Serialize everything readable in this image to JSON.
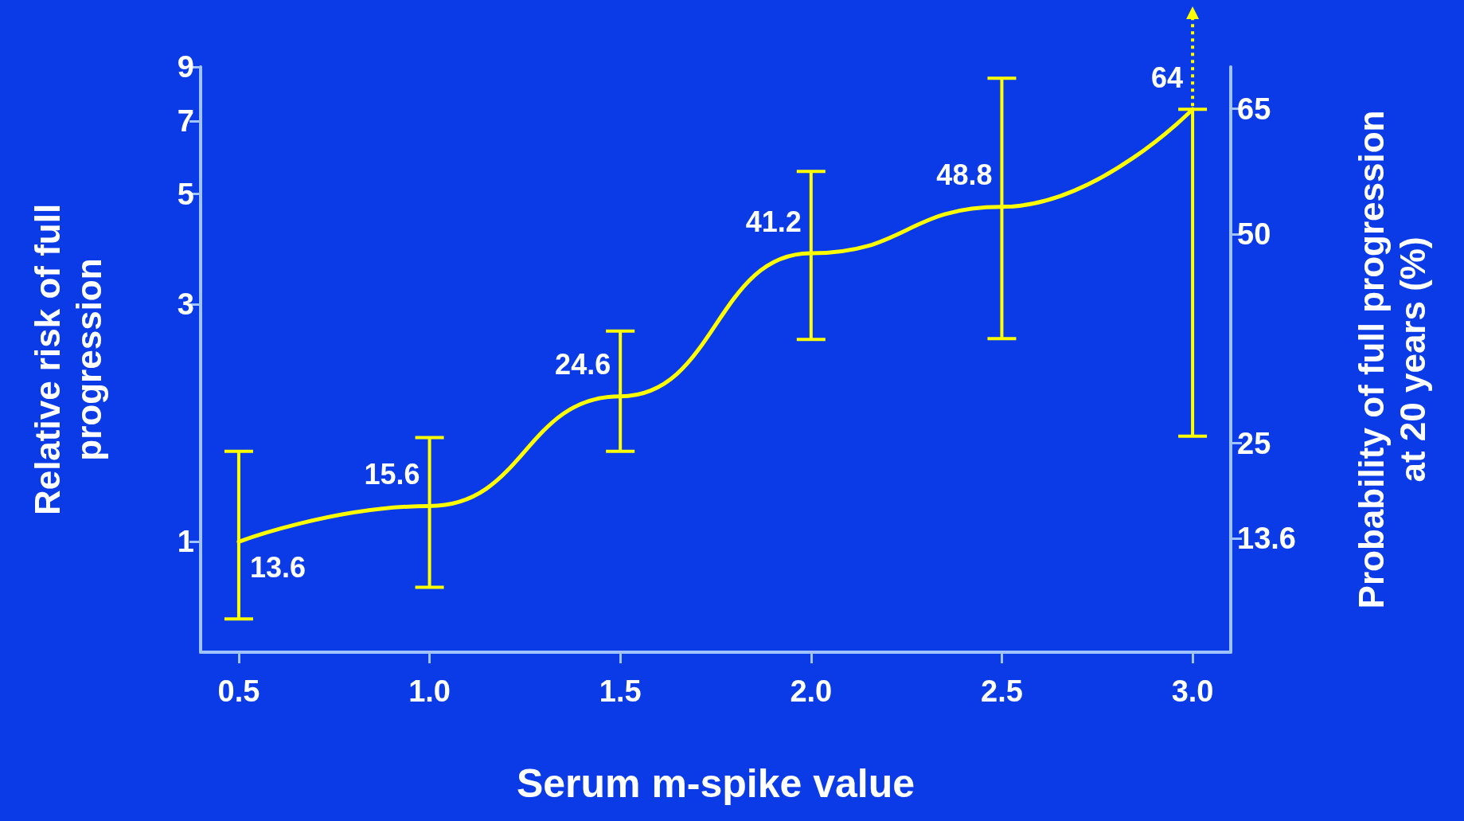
{
  "chart_data": {
    "type": "line",
    "xlabel": "Serum m-spike value",
    "ylabel": "Relative risk of full\nprogression",
    "y2label": "Probability of full progression\nat 20 years (%)",
    "x": [
      0.5,
      1.0,
      1.5,
      2.0,
      2.5,
      3.0
    ],
    "series": [
      {
        "color": "#ffff00",
        "values": [
          1.0,
          1.18,
          1.96,
          3.8,
          4.71,
          7.4
        ],
        "errors": [
          [
            0.7,
            1.52
          ],
          [
            0.81,
            1.62
          ],
          [
            1.52,
            2.65
          ],
          [
            2.55,
            5.55
          ],
          [
            2.56,
            8.54
          ],
          [
            1.63,
            7.4
          ]
        ]
      }
    ],
    "annotations": [
      {
        "text": "13.6",
        "x": 0.5,
        "y": 1.0
      },
      {
        "text": "15.6",
        "x": 1.0,
        "y": 1.18
      },
      {
        "text": "24.6",
        "x": 1.5,
        "y": 1.96
      },
      {
        "text": "41.2",
        "x": 2.0,
        "y": 3.8
      },
      {
        "text": "48.8",
        "x": 2.5,
        "y": 4.71
      },
      {
        "text": "64",
        "x": 3.0,
        "y": 7.4
      }
    ],
    "xlim": [
      0.4,
      3.1
    ],
    "xticks": [
      {
        "value": 0.5,
        "label": "0.5"
      },
      {
        "value": 1.0,
        "label": "1.0"
      },
      {
        "value": 1.5,
        "label": "1.5"
      },
      {
        "value": 2.0,
        "label": "2.0"
      },
      {
        "value": 2.5,
        "label": "2.5"
      },
      {
        "value": 3.0,
        "label": "3.0"
      }
    ],
    "ylim": [
      0.6,
      9
    ],
    "yticks": [
      1,
      3,
      5,
      7,
      9
    ],
    "y2lim": [
      0,
      70
    ],
    "y2ticks": [
      13.6,
      25,
      50,
      65
    ],
    "log": "y",
    "grid": false,
    "marker": "none",
    "line_style": "solid"
  }
}
